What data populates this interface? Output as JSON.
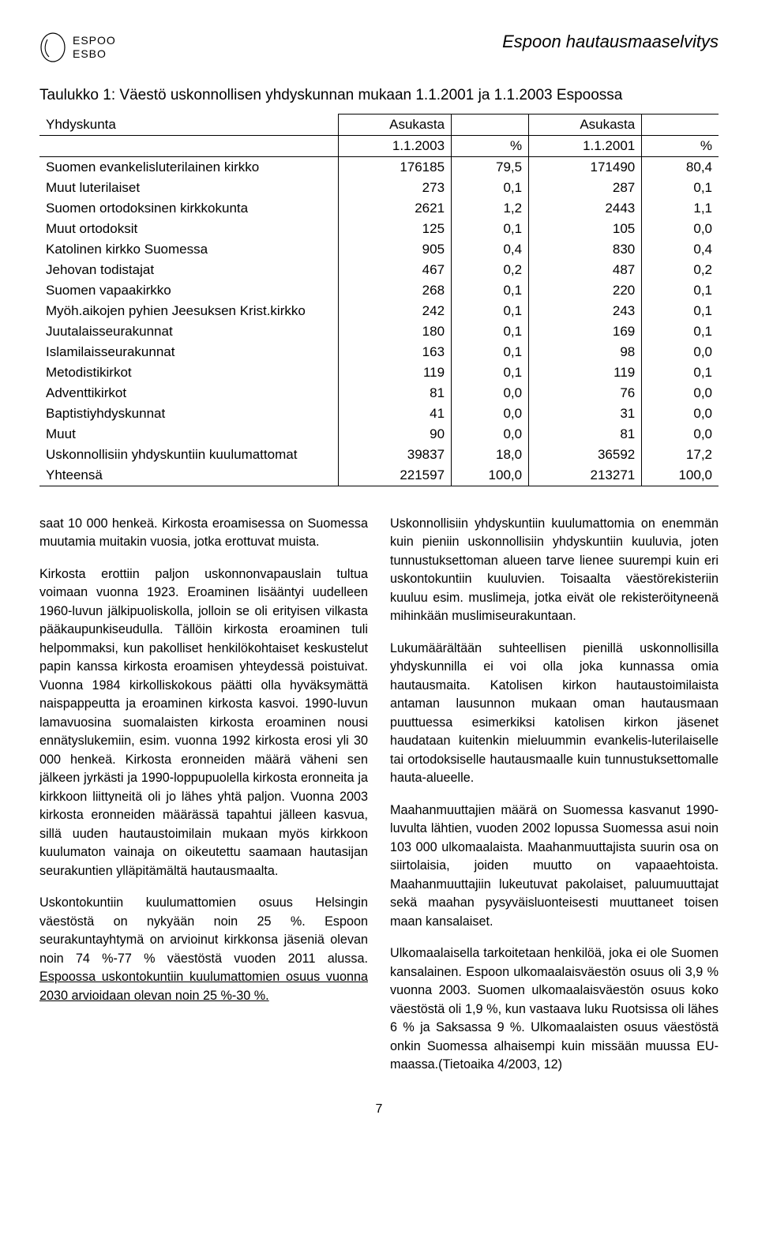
{
  "logo": {
    "line1": "ESPOO",
    "line2": "ESBO"
  },
  "doc_title": "Espoon hautausmaaselvitys",
  "table_title": "Taulukko 1: Väestö uskonnollisen yhdyskunnan mukaan 1.1.2001 ja 1.1.2003 Espoossa",
  "table": {
    "header": {
      "c1": "Yhdyskunta",
      "c2": "Asukasta",
      "c3": "",
      "c4": "Asukasta",
      "c5": "",
      "r2c2": "1.1.2003",
      "r2c3": "%",
      "r2c4": "1.1.2001",
      "r2c5": "%"
    },
    "rows": [
      {
        "label": "Suomen evankelisluterilainen kirkko",
        "a": "176185",
        "ap": "79,5",
        "b": "171490",
        "bp": "80,4"
      },
      {
        "label": "Muut luterilaiset",
        "a": "273",
        "ap": "0,1",
        "b": "287",
        "bp": "0,1"
      },
      {
        "label": "Suomen ortodoksinen kirkkokunta",
        "a": "2621",
        "ap": "1,2",
        "b": "2443",
        "bp": "1,1"
      },
      {
        "label": "Muut ortodoksit",
        "a": "125",
        "ap": "0,1",
        "b": "105",
        "bp": "0,0"
      },
      {
        "label": "Katolinen kirkko Suomessa",
        "a": "905",
        "ap": "0,4",
        "b": "830",
        "bp": "0,4"
      },
      {
        "label": "Jehovan todistajat",
        "a": "467",
        "ap": "0,2",
        "b": "487",
        "bp": "0,2"
      },
      {
        "label": "Suomen vapaakirkko",
        "a": "268",
        "ap": "0,1",
        "b": "220",
        "bp": "0,1"
      },
      {
        "label": "Myöh.aikojen pyhien Jeesuksen Krist.kirkko",
        "a": "242",
        "ap": "0,1",
        "b": "243",
        "bp": "0,1"
      },
      {
        "label": "Juutalaisseurakunnat",
        "a": "180",
        "ap": "0,1",
        "b": "169",
        "bp": "0,1"
      },
      {
        "label": "Islamilaisseurakunnat",
        "a": "163",
        "ap": "0,1",
        "b": "98",
        "bp": "0,0"
      },
      {
        "label": "Metodistikirkot",
        "a": "119",
        "ap": "0,1",
        "b": "119",
        "bp": "0,1"
      },
      {
        "label": "Adventtikirkot",
        "a": "81",
        "ap": "0,0",
        "b": "76",
        "bp": "0,0"
      },
      {
        "label": "Baptistiyhdyskunnat",
        "a": "41",
        "ap": "0,0",
        "b": "31",
        "bp": "0,0"
      },
      {
        "label": "Muut",
        "a": "90",
        "ap": "0,0",
        "b": "81",
        "bp": "0,0"
      },
      {
        "label": "Uskonnollisiin yhdyskuntiin kuulumattomat",
        "a": "39837",
        "ap": "18,0",
        "b": "36592",
        "bp": "17,2"
      },
      {
        "label": "Yhteensä",
        "a": "221597",
        "ap": "100,0",
        "b": "213271",
        "bp": "100,0"
      }
    ]
  },
  "col1": {
    "p1": "saat 10 000 henkeä. Kirkosta eroamisessa on Suomessa muutamia muitakin vuosia, jotka erottuvat muista.",
    "p2": "Kirkosta erottiin paljon uskonnonvapauslain tultua voimaan vuonna 1923. Eroaminen lisääntyi uudelleen 1960-luvun jälkipuoliskolla, jolloin se oli erityisen vilkasta pääkaupunkiseudulla. Tällöin kirkosta eroaminen tuli helpommaksi, kun pakolliset henkilökohtaiset keskustelut papin kanssa kirkosta eroamisen yhteydessä poistuivat. Vuonna 1984 kirkolliskokous päätti olla hyväksymättä naispappeutta ja eroaminen kirkosta kasvoi. 1990-luvun lamavuosina suomalaisten kirkosta eroaminen nousi ennätyslukemiin, esim. vuonna 1992 kirkosta erosi yli 30 000 henkeä. Kirkosta eronneiden määrä väheni sen jälkeen jyrkästi ja 1990-loppupuolella kirkosta eronneita ja kirkkoon liittyneitä oli jo lähes yhtä paljon. Vuonna 2003 kirkosta eronneiden määrässä tapahtui jälleen kasvua, sillä uuden hautaustoimilain mukaan myös kirkkoon kuulumaton vainaja on oikeutettu saamaan hautasijan seurakuntien ylläpitämältä hautausmaalta.",
    "p3a": "Uskontokuntiin kuulumattomien osuus Helsingin väestöstä on nykyään noin 25 %. Espoon seurakuntayhtymä on arvioinut kirkkonsa jäseniä olevan noin 74 %-77 % väestöstä vuoden 2011 alussa. ",
    "p3b": "Espoossa uskontokuntiin kuulumattomien osuus vuonna 2030 arvioidaan olevan noin 25 %-30 %."
  },
  "col2": {
    "p1": "Uskonnollisiin yhdyskuntiin kuulumattomia on enemmän kuin pieniin uskonnollisiin yhdyskuntiin kuuluvia, joten tunnustuksettoman alueen tarve lienee suurempi kuin eri uskontokuntiin kuuluvien. Toisaalta väestörekisteriin kuuluu esim. muslimeja, jotka eivät ole rekisteröityneenä mihinkään muslimiseurakuntaan.",
    "p2": "Lukumäärältään suhteellisen pienillä uskonnollisilla yhdyskunnilla ei voi olla joka kunnassa omia hautausmaita. Katolisen kirkon hautaustoimilaista antaman lausunnon mukaan oman hautausmaan puuttuessa esimerkiksi katolisen kirkon jäsenet haudataan kuitenkin mieluummin evankelis-luterilaiselle tai ortodoksiselle hautausmaalle kuin tunnustuksettomalle hauta-alueelle.",
    "p3": "Maahanmuuttajien määrä on Suomessa kasvanut 1990-luvulta lähtien, vuoden 2002 lopussa Suomessa asui noin 103 000 ulkomaalaista. Maahanmuuttajista suurin osa on siirtolaisia, joiden muutto on vapaaehtoista. Maahanmuuttajiin lukeutuvat pakolaiset, paluumuuttajat sekä maahan pysyväisluonteisesti muuttaneet toisen maan kansalaiset.",
    "p4": "Ulkomaalaisella tarkoitetaan henkilöä, joka ei ole Suomen kansalainen. Espoon ulkomaalaisväestön osuus oli 3,9 % vuonna 2003. Suomen ulkomaalaisväestön osuus koko väestöstä oli 1,9 %, kun vastaava luku Ruotsissa oli lähes 6 % ja Saksassa 9 %. Ulkomaalaisten osuus väestöstä onkin Suomessa alhaisempi kuin missään muussa EU-maassa.(Tietoaika 4/2003, 12)"
  },
  "page_number": "7"
}
